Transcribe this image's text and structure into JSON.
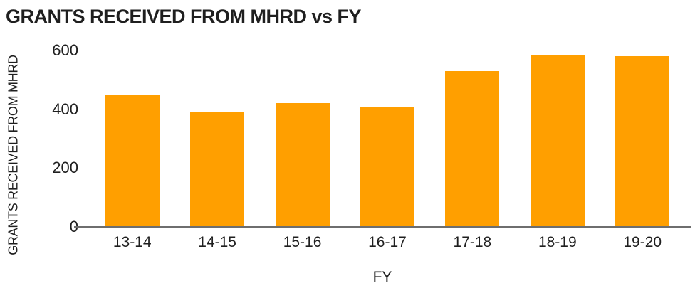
{
  "chart_data": {
    "type": "bar",
    "title": "GRANTS RECEIVED FROM MHRD vs FY",
    "xlabel": "FY",
    "ylabel": "GRANTS RECEIVED FROM MHRD",
    "categories": [
      "13-14",
      "14-15",
      "15-16",
      "16-17",
      "17-18",
      "18-19",
      "19-20"
    ],
    "values": [
      448,
      392,
      422,
      410,
      530,
      585,
      581
    ],
    "ylim": [
      0,
      600
    ],
    "yticks": [
      0,
      200,
      400,
      600
    ],
    "grid": "off",
    "legend": "none",
    "bar_color": "#ff9f00",
    "axis_color": "#6e6e6e",
    "text_color": "#1f1f1f"
  }
}
